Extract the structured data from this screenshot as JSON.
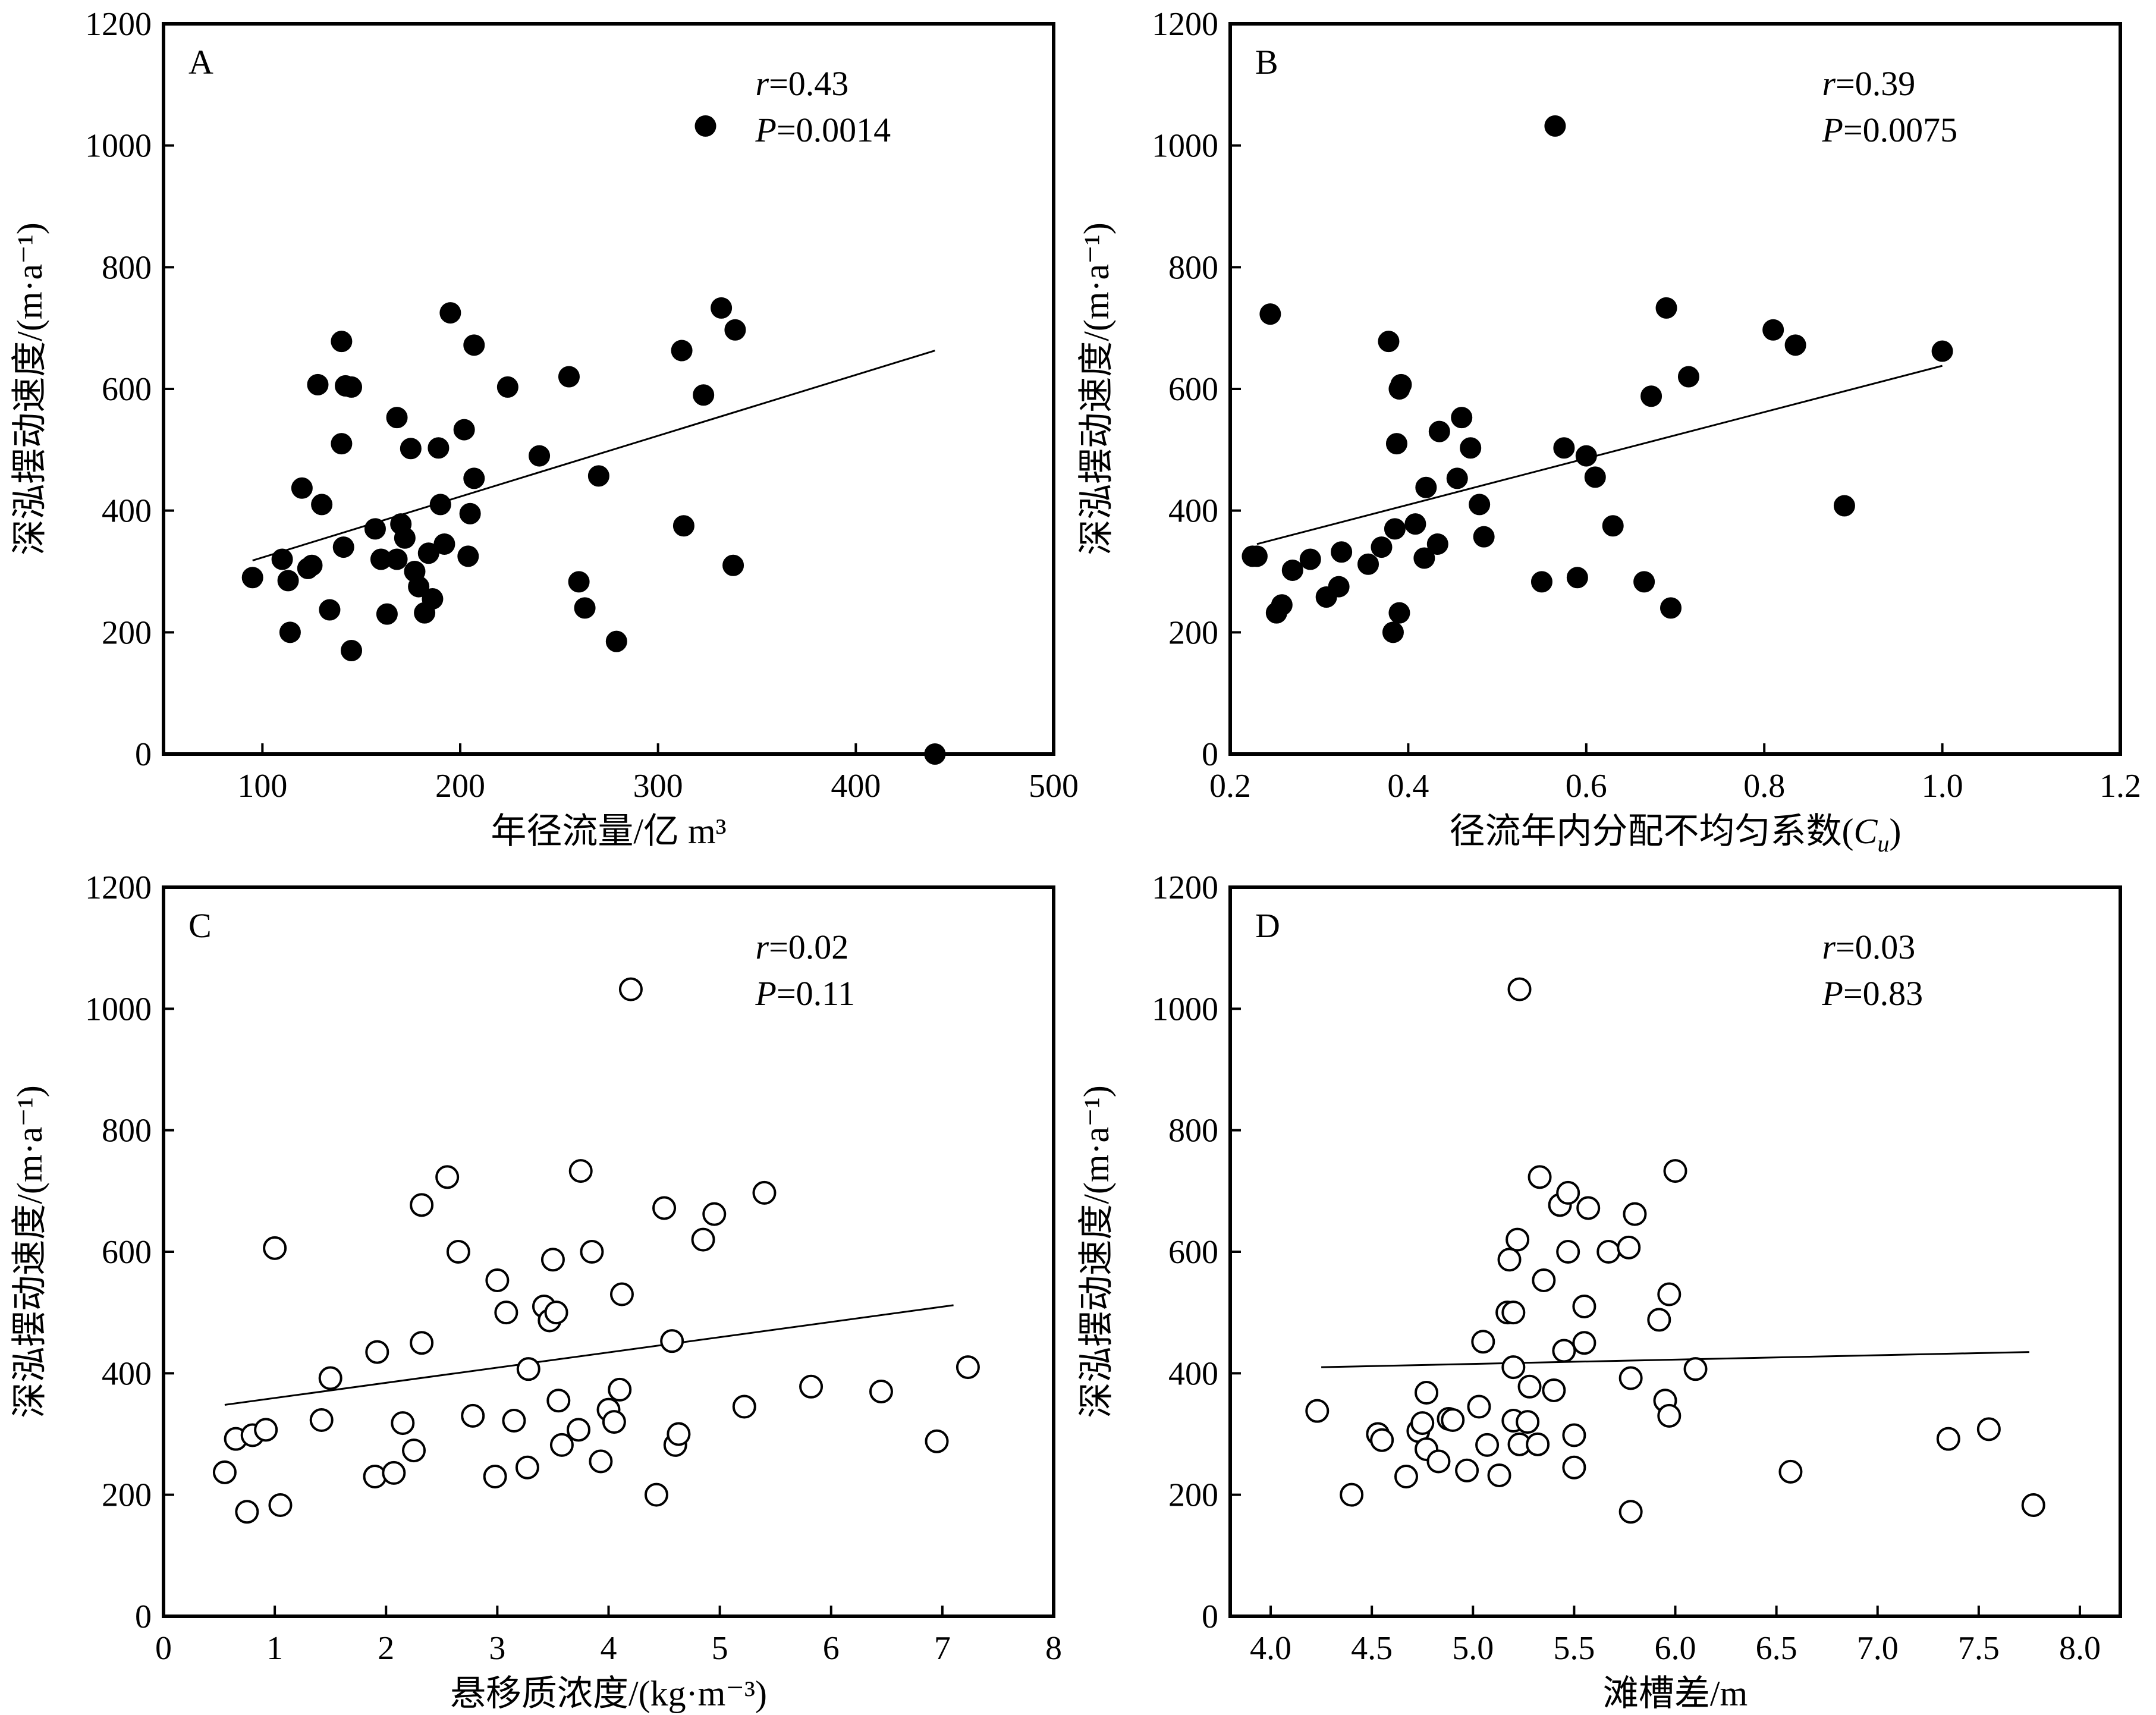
{
  "chart_data": [
    {
      "id": "A",
      "type": "scatter",
      "panel_label": "A",
      "xlabel": "年径流量/亿 m³",
      "ylabel": "深泓摆动速度/(m·a⁻¹)",
      "xlim": [
        50,
        500
      ],
      "ylim": [
        0,
        1200
      ],
      "xticks": [
        "100",
        "200",
        "300",
        "400",
        "500"
      ],
      "xtick_values": [
        100,
        200,
        300,
        400,
        500
      ],
      "yticks": [
        "0",
        "200",
        "400",
        "600",
        "800",
        "1000",
        "1200"
      ],
      "ytick_values": [
        0,
        200,
        400,
        600,
        800,
        1000,
        1200
      ],
      "marker": "filled",
      "stats": {
        "r_symbol": "r",
        "r_value": "=0.43",
        "p_symbol": "P",
        "p_value": "=0.0014"
      },
      "trend": {
        "x": [
          95,
          440
        ],
        "y": [
          318,
          663
        ]
      },
      "x": [
        95,
        110,
        113,
        114,
        120,
        123,
        125,
        128,
        130,
        134,
        140,
        140,
        141,
        142,
        145,
        145,
        157,
        160,
        163,
        168,
        168,
        170,
        172,
        175,
        177,
        179,
        182,
        184,
        186,
        189,
        190,
        192,
        195,
        202,
        204,
        205,
        207,
        207,
        224,
        240,
        255,
        260,
        263,
        270,
        279,
        312,
        313,
        323,
        324,
        332,
        338,
        339,
        440
      ],
      "y": [
        290,
        320,
        285,
        200,
        437,
        305,
        310,
        607,
        410,
        237,
        510,
        678,
        340,
        605,
        170,
        603,
        370,
        320,
        230,
        553,
        320,
        378,
        355,
        502,
        300,
        275,
        232,
        330,
        255,
        503,
        410,
        345,
        725,
        533,
        325,
        395,
        453,
        672,
        603,
        490,
        620,
        283,
        240,
        457,
        185,
        663,
        375,
        590,
        1032,
        733,
        310,
        697,
        0
      ]
    },
    {
      "id": "B",
      "type": "scatter",
      "panel_label": "B",
      "xlabel": "径流年内分配不均匀系数(",
      "xlabel_sym": "C",
      "xlabel_sub": "u",
      "xlabel_end": ")",
      "ylabel": "深泓摆动速度/(m·a⁻¹)",
      "xlim": [
        0.2,
        1.2
      ],
      "ylim": [
        0,
        1200
      ],
      "xticks": [
        "0.2",
        "0.4",
        "0.6",
        "0.8",
        "1.0",
        "1.2"
      ],
      "xtick_values": [
        0.2,
        0.4,
        0.6,
        0.8,
        1.0,
        1.2
      ],
      "yticks": [
        "0",
        "200",
        "400",
        "600",
        "800",
        "1000",
        "1200"
      ],
      "ytick_values": [
        0,
        200,
        400,
        600,
        800,
        1000,
        1200
      ],
      "marker": "filled",
      "stats": {
        "r_symbol": "r",
        "r_value": "=0.39",
        "p_symbol": "P",
        "p_value": "=0.0075"
      },
      "trend": {
        "x": [
          0.23,
          1.0
        ],
        "y": [
          345,
          638
        ]
      },
      "x": [
        0.225,
        0.23,
        0.245,
        0.252,
        0.258,
        0.27,
        0.29,
        0.308,
        0.322,
        0.325,
        0.355,
        0.37,
        0.378,
        0.383,
        0.385,
        0.387,
        0.39,
        0.39,
        0.392,
        0.408,
        0.418,
        0.42,
        0.433,
        0.435,
        0.455,
        0.46,
        0.47,
        0.48,
        0.485,
        0.55,
        0.565,
        0.575,
        0.59,
        0.6,
        0.61,
        0.63,
        0.665,
        0.673,
        0.69,
        0.695,
        0.715,
        0.81,
        0.835,
        0.89,
        1.0
      ],
      "y": [
        325,
        325,
        723,
        232,
        245,
        302,
        320,
        258,
        275,
        332,
        312,
        340,
        678,
        200,
        370,
        510,
        232,
        600,
        607,
        378,
        322,
        438,
        345,
        530,
        453,
        553,
        503,
        410,
        357,
        283,
        1032,
        503,
        290,
        490,
        455,
        375,
        283,
        588,
        733,
        240,
        620,
        697,
        672,
        408,
        662
      ]
    },
    {
      "id": "C",
      "type": "scatter",
      "panel_label": "C",
      "xlabel": "悬移质浓度/(kg·m⁻³)",
      "ylabel": "深泓摆动速度/(m·a⁻¹)",
      "xlim": [
        0,
        8
      ],
      "ylim": [
        0,
        1200
      ],
      "xticks": [
        "0",
        "1",
        "2",
        "3",
        "4",
        "5",
        "6",
        "7",
        "8"
      ],
      "xtick_values": [
        0,
        1,
        2,
        3,
        4,
        5,
        6,
        7,
        8
      ],
      "yticks": [
        "0",
        "200",
        "400",
        "600",
        "800",
        "1000",
        "1200"
      ],
      "ytick_values": [
        0,
        200,
        400,
        600,
        800,
        1000,
        1200
      ],
      "marker": "open",
      "stats": {
        "r_symbol": "r",
        "r_value": "=0.02",
        "p_symbol": "P",
        "p_value": "=0.11"
      },
      "trend": {
        "x": [
          0.55,
          7.1
        ],
        "y": [
          348,
          512
        ]
      },
      "x": [
        0.55,
        0.65,
        0.75,
        0.8,
        0.92,
        1.0,
        1.05,
        1.42,
        1.5,
        1.9,
        1.92,
        2.07,
        2.15,
        2.25,
        2.32,
        2.32,
        2.55,
        2.65,
        2.78,
        2.98,
        3.0,
        3.08,
        3.15,
        3.27,
        3.28,
        3.42,
        3.47,
        3.5,
        3.53,
        3.55,
        3.58,
        3.73,
        3.75,
        3.85,
        3.93,
        4.0,
        4.05,
        4.1,
        4.12,
        4.2,
        4.43,
        4.5,
        4.57,
        4.6,
        4.63,
        4.85,
        4.95,
        5.22,
        5.4,
        5.82,
        6.45,
        6.95,
        7.23
      ],
      "y": [
        237,
        292,
        172,
        298,
        307,
        606,
        183,
        323,
        392,
        230,
        435,
        236,
        318,
        273,
        450,
        677,
        723,
        600,
        330,
        230,
        553,
        500,
        322,
        245,
        407,
        510,
        487,
        587,
        500,
        355,
        282,
        307,
        733,
        600,
        255,
        340,
        320,
        373,
        530,
        1032,
        200,
        672,
        453,
        282,
        300,
        620,
        662,
        345,
        697,
        378,
        370,
        288,
        410
      ]
    },
    {
      "id": "D",
      "type": "scatter",
      "panel_label": "D",
      "xlabel": "滩槽差/m",
      "ylabel": "深泓摆动速度/(m·a⁻¹)",
      "xlim": [
        3.8,
        8.2
      ],
      "ylim": [
        0,
        1200
      ],
      "xticks": [
        "4.0",
        "4.5",
        "5.0",
        "5.5",
        "6.0",
        "6.5",
        "7.0",
        "7.5",
        "8.0"
      ],
      "xtick_values": [
        4.0,
        4.5,
        5.0,
        5.5,
        6.0,
        6.5,
        7.0,
        7.5,
        8.0
      ],
      "yticks": [
        "0",
        "200",
        "400",
        "600",
        "800",
        "1000",
        "1200"
      ],
      "ytick_values": [
        0,
        200,
        400,
        600,
        800,
        1000,
        1200
      ],
      "marker": "open",
      "stats": {
        "r_symbol": "r",
        "r_value": "=0.03",
        "p_symbol": "P",
        "p_value": "=0.83"
      },
      "trend": {
        "x": [
          4.25,
          7.75
        ],
        "y": [
          410,
          435
        ]
      },
      "x": [
        4.23,
        4.4,
        4.53,
        4.55,
        4.67,
        4.73,
        4.75,
        4.77,
        4.77,
        4.83,
        4.88,
        4.9,
        4.97,
        5.03,
        5.05,
        5.07,
        5.13,
        5.17,
        5.18,
        5.2,
        5.2,
        5.2,
        5.22,
        5.23,
        5.23,
        5.27,
        5.28,
        5.32,
        5.33,
        5.35,
        5.4,
        5.43,
        5.45,
        5.47,
        5.47,
        5.5,
        5.5,
        5.55,
        5.55,
        5.57,
        5.67,
        5.77,
        5.78,
        5.78,
        5.8,
        5.92,
        5.95,
        5.97,
        5.97,
        6.0,
        6.1,
        6.57,
        7.35,
        7.55,
        7.77
      ],
      "y": [
        338,
        200,
        300,
        290,
        230,
        305,
        318,
        368,
        275,
        255,
        325,
        323,
        240,
        345,
        452,
        282,
        232,
        500,
        587,
        410,
        322,
        500,
        620,
        283,
        1032,
        320,
        378,
        283,
        723,
        553,
        372,
        677,
        437,
        697,
        600,
        298,
        245,
        510,
        450,
        672,
        600,
        607,
        392,
        172,
        662,
        488,
        355,
        530,
        330,
        733,
        407,
        238,
        292,
        308,
        183
      ]
    }
  ]
}
